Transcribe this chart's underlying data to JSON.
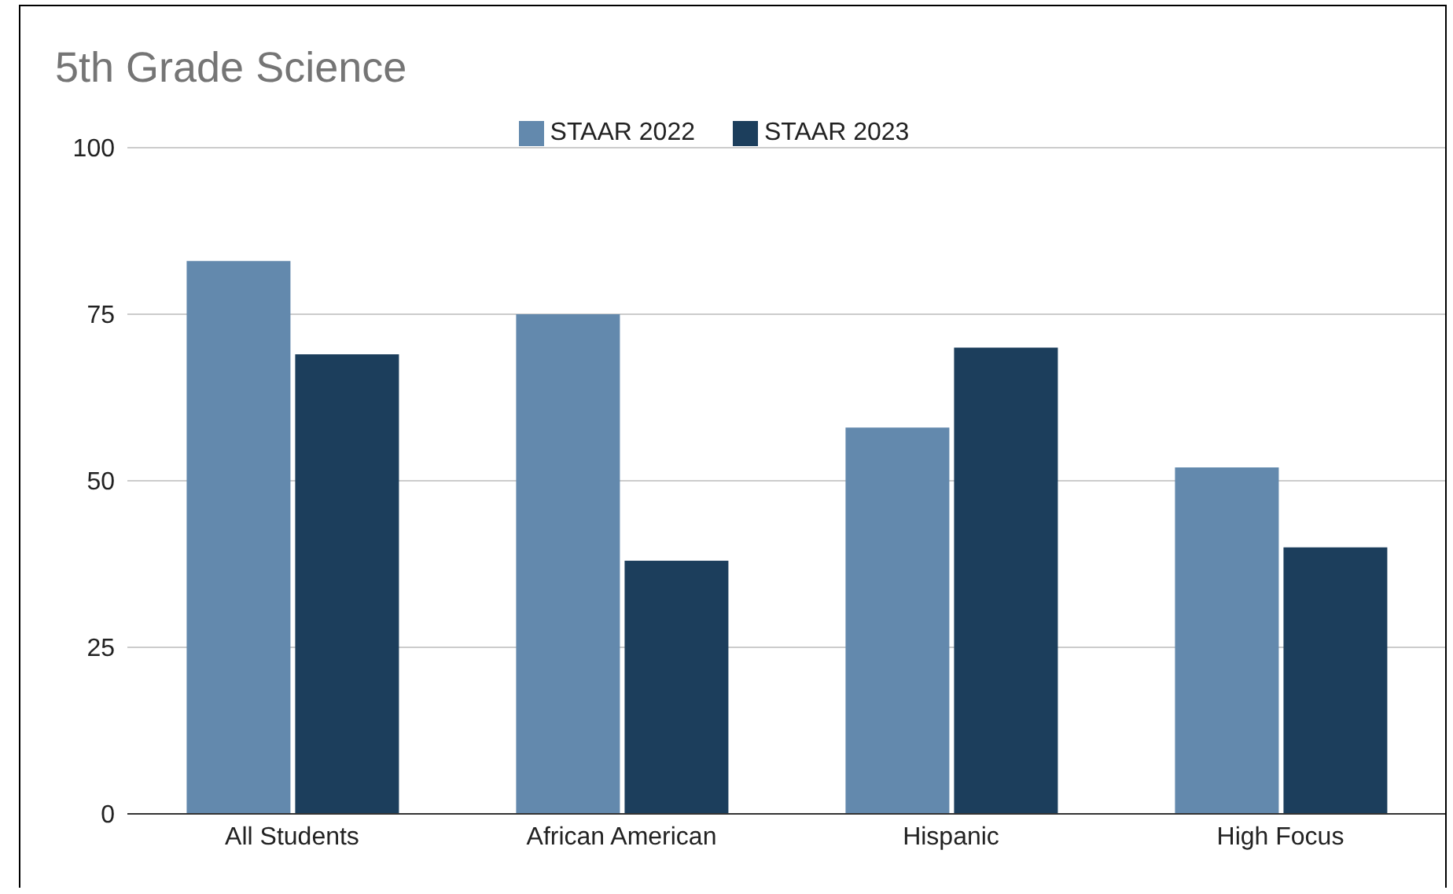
{
  "chart_data": {
    "type": "bar",
    "title": "5th Grade Science",
    "categories": [
      "All Students",
      "African American",
      "Hispanic",
      "High Focus"
    ],
    "series": [
      {
        "name": "STAAR 2022",
        "color": "#6389ad",
        "values": [
          83,
          75,
          58,
          52
        ]
      },
      {
        "name": "STAAR 2023",
        "color": "#1c3e5c",
        "values": [
          69,
          38,
          70,
          40
        ]
      }
    ],
    "ylim": [
      0,
      100
    ],
    "yticks": [
      0,
      25,
      50,
      75,
      100
    ],
    "grid": "y",
    "legend": "top"
  }
}
